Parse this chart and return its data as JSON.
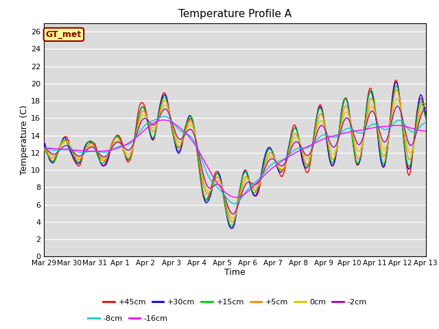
{
  "title": "Temperature Profile A",
  "xlabel": "Time",
  "ylabel": "Temperature (C)",
  "ylim": [
    0,
    27
  ],
  "yticks": [
    0,
    2,
    4,
    6,
    8,
    10,
    12,
    14,
    16,
    18,
    20,
    22,
    24,
    26
  ],
  "x_labels": [
    "Mar 29",
    "Mar 30",
    "Mar 31",
    "Apr 1",
    "Apr 2",
    "Apr 3",
    "Apr 4",
    "Apr 5",
    "Apr 6",
    "Apr 7",
    "Apr 8",
    "Apr 9",
    "Apr 10",
    "Apr 11",
    "Apr 12",
    "Apr 13"
  ],
  "annotation_text": "GT_met",
  "annotation_bg": "#FFFF99",
  "annotation_border": "#8B0000",
  "annotation_text_color": "#8B0000",
  "bg_color": "#DCDCDC",
  "series": [
    {
      "label": "+45cm",
      "color": "#FF0000",
      "lw": 1.0
    },
    {
      "label": "+30cm",
      "color": "#0000FF",
      "lw": 1.0
    },
    {
      "label": "+15cm",
      "color": "#00CC00",
      "lw": 1.0
    },
    {
      "label": "+5cm",
      "color": "#FF8800",
      "lw": 1.0
    },
    {
      "label": "0cm",
      "color": "#CCCC00",
      "lw": 1.0
    },
    {
      "label": "-2cm",
      "color": "#AA00AA",
      "lw": 1.0
    },
    {
      "label": "-8cm",
      "color": "#00CCCC",
      "lw": 1.0
    },
    {
      "label": "-16cm",
      "color": "#FF00FF",
      "lw": 1.0
    }
  ]
}
